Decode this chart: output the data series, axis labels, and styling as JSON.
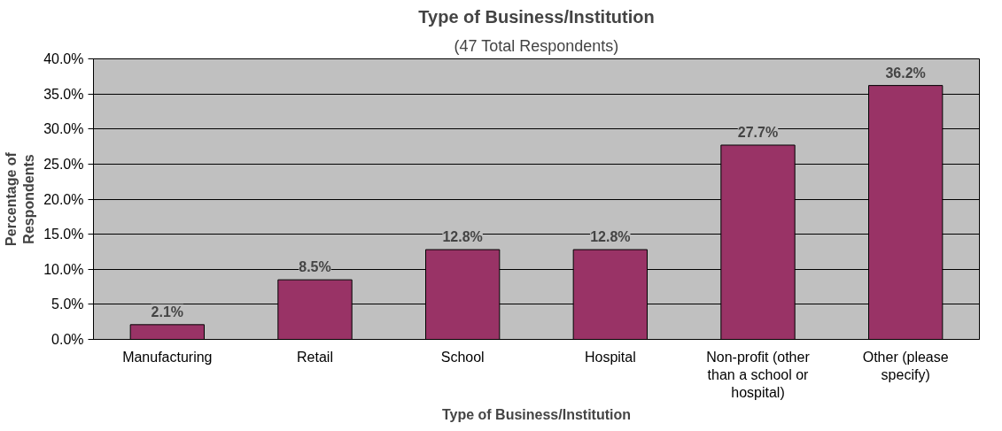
{
  "chart_data": {
    "type": "bar",
    "title": "Type of Business/Institution",
    "subtitle": "(47 Total Respondents)",
    "xlabel": "Type of Business/Institution",
    "ylabel": "Percentage of Respondents",
    "categories": [
      "Manufacturing",
      "Retail",
      "School",
      "Hospital",
      "Non-profit (other than a school or hospital)",
      "Other (please specify)"
    ],
    "values": [
      2.1,
      8.5,
      12.8,
      12.8,
      27.7,
      36.2
    ],
    "value_labels": [
      "2.1%",
      "8.5%",
      "12.8%",
      "12.8%",
      "27.7%",
      "36.2%"
    ],
    "color": "#993366",
    "ylim": [
      0,
      40
    ],
    "yticks": [
      {
        "value": 0,
        "label": "0.0%"
      },
      {
        "value": 5,
        "label": "5.0%"
      },
      {
        "value": 10,
        "label": "10.0%"
      },
      {
        "value": 15,
        "label": "15.0%"
      },
      {
        "value": 20,
        "label": "20.0%"
      },
      {
        "value": 25,
        "label": "25.0%"
      },
      {
        "value": 30,
        "label": "30.0%"
      },
      {
        "value": 35,
        "label": "35.0%"
      },
      {
        "value": 40,
        "label": "40.0%"
      }
    ],
    "grid": "y"
  }
}
